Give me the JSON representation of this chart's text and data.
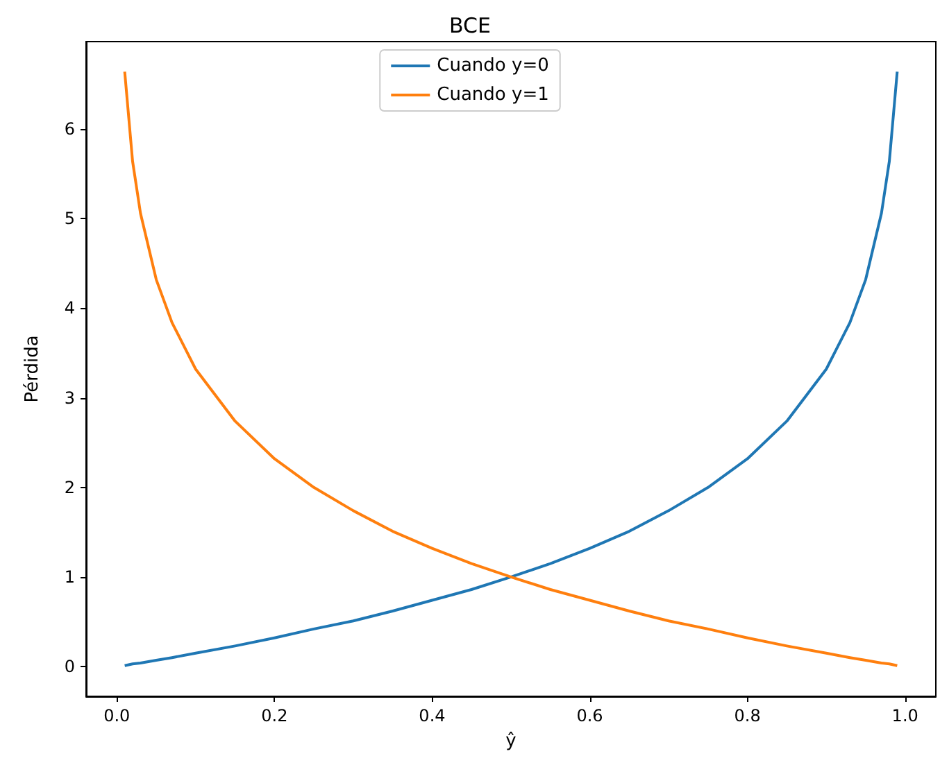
{
  "chart_data": {
    "type": "line",
    "title": "BCE",
    "xlabel": "ŷ",
    "ylabel": "Pérdida",
    "x": [
      0.01,
      0.02,
      0.03,
      0.05,
      0.07,
      0.1,
      0.15,
      0.2,
      0.25,
      0.3,
      0.35,
      0.4,
      0.45,
      0.5,
      0.55,
      0.6,
      0.65,
      0.7,
      0.75,
      0.8,
      0.85,
      0.9,
      0.93,
      0.95,
      0.97,
      0.98,
      0.99
    ],
    "series": [
      {
        "name": "Cuando y=0",
        "color": "#1f77b4",
        "values": [
          0.01,
          0.03,
          0.04,
          0.07,
          0.1,
          0.15,
          0.23,
          0.32,
          0.42,
          0.51,
          0.62,
          0.74,
          0.86,
          1.0,
          1.15,
          1.32,
          1.51,
          1.74,
          2.0,
          2.32,
          2.74,
          3.32,
          3.84,
          4.32,
          5.06,
          5.64,
          6.64
        ]
      },
      {
        "name": "Cuando y=1",
        "color": "#ff7f0e",
        "values": [
          6.64,
          5.64,
          5.06,
          4.32,
          3.84,
          3.32,
          2.74,
          2.32,
          2.0,
          1.74,
          1.51,
          1.32,
          1.15,
          1.0,
          0.86,
          0.74,
          0.62,
          0.51,
          0.42,
          0.32,
          0.23,
          0.15,
          0.1,
          0.07,
          0.04,
          0.03,
          0.01
        ]
      }
    ],
    "xlim": [
      -0.039,
      1.039
    ],
    "ylim": [
      -0.332,
      6.976
    ],
    "xticks": [
      {
        "value": 0,
        "label": "0.0"
      },
      {
        "value": 0.2,
        "label": "0.2"
      },
      {
        "value": 0.4,
        "label": "0.4"
      },
      {
        "value": 0.6,
        "label": "0.6"
      },
      {
        "value": 0.8,
        "label": "0.8"
      },
      {
        "value": 1,
        "label": "1.0"
      }
    ],
    "yticks": [
      0,
      1,
      2,
      3,
      4,
      5,
      6
    ],
    "legend": "top",
    "grid": false,
    "marker": "none",
    "line_style": "solid"
  }
}
